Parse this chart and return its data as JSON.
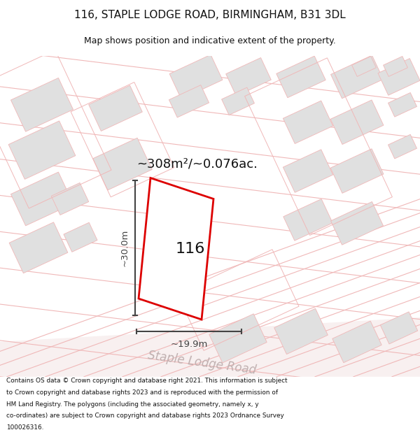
{
  "title_line1": "116, STAPLE LODGE ROAD, BIRMINGHAM, B31 3DL",
  "title_line2": "Map shows position and indicative extent of the property.",
  "area_text": "~308m²/~0.076ac.",
  "number_label": "116",
  "width_label": "~19.9m",
  "height_label": "~30.0m",
  "road_label": "Staple Lodge Road",
  "footer_lines": [
    "Contains OS data © Crown copyright and database right 2021. This information is subject",
    "to Crown copyright and database rights 2023 and is reproduced with the permission of",
    "HM Land Registry. The polygons (including the associated geometry, namely x, y",
    "co-ordinates) are subject to Crown copyright and database rights 2023 Ordnance Survey",
    "100026316."
  ],
  "bg_color": "#ffffff",
  "map_bg": "#ffffff",
  "plot_fill": "#ffffff",
  "plot_edge": "#dd0000",
  "pink_line": "#f0b8b8",
  "pink_fill": "#f5e8e8",
  "gray_fill": "#e0e0e0",
  "gray_edge": "#cccccc",
  "dim_line_color": "#444444",
  "text_color": "#111111",
  "road_text_color": "#c0b0b0"
}
